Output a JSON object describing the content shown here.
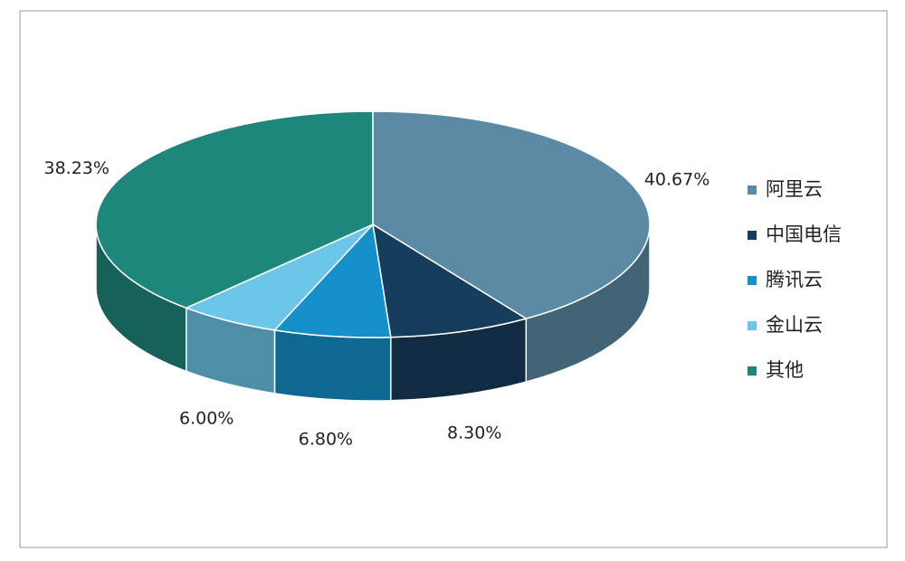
{
  "chart_data": {
    "type": "pie3d",
    "categories": [
      "阿里云",
      "中国电信",
      "腾讯云",
      "金山云",
      "其他"
    ],
    "values": [
      40.67,
      8.3,
      6.8,
      6.0,
      38.23
    ],
    "value_labels": [
      "40.67%",
      "8.30%",
      "6.80%",
      "6.00%",
      "38.23%"
    ],
    "colors": [
      "#5b8ba4",
      "#173d5c",
      "#1590cb",
      "#6cc6ea",
      "#1e877b"
    ],
    "legend": "right"
  }
}
